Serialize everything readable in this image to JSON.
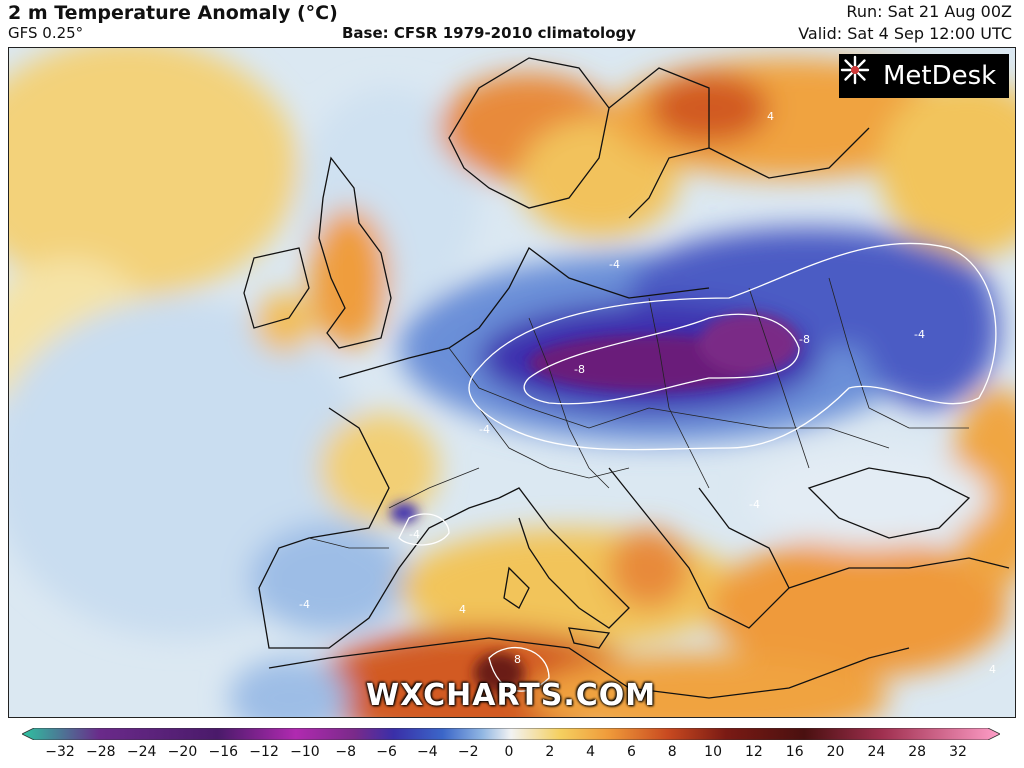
{
  "header": {
    "title": "2 m Temperature Anomaly (°C)",
    "model": "GFS 0.25°",
    "base": "Base: CFSR 1979-2010 climatology",
    "run": "Run: Sat 21 Aug 00Z",
    "valid": "Valid: Sat 4 Sep 12:00 UTC"
  },
  "map": {
    "region": "Europe",
    "contour_labels": [
      "-4",
      "-8",
      "4",
      "8"
    ]
  },
  "branding": {
    "logo_text": "MetDesk",
    "watermark": "WXCHARTS.COM"
  },
  "colorbar": {
    "ticks": [
      "−32",
      "−28",
      "−24",
      "−20",
      "−16",
      "−12",
      "−10",
      "−8",
      "−6",
      "−4",
      "−2",
      "0",
      "2",
      "4",
      "6",
      "8",
      "10",
      "12",
      "16",
      "20",
      "24",
      "28",
      "32"
    ],
    "colors": {
      "cold_extreme": "#2ec3a0",
      "purple": "#6a1b7a",
      "deep_blue": "#3a2fa8",
      "blue": "#5a8fd6",
      "light_blue": "#d2e4f3",
      "neutral": "#f2f2f2",
      "yellow": "#f5d060",
      "orange": "#ef9a3a",
      "red": "#c94a20",
      "dark_red": "#7a1a14",
      "warm_extreme": "#ff9ec8"
    }
  }
}
